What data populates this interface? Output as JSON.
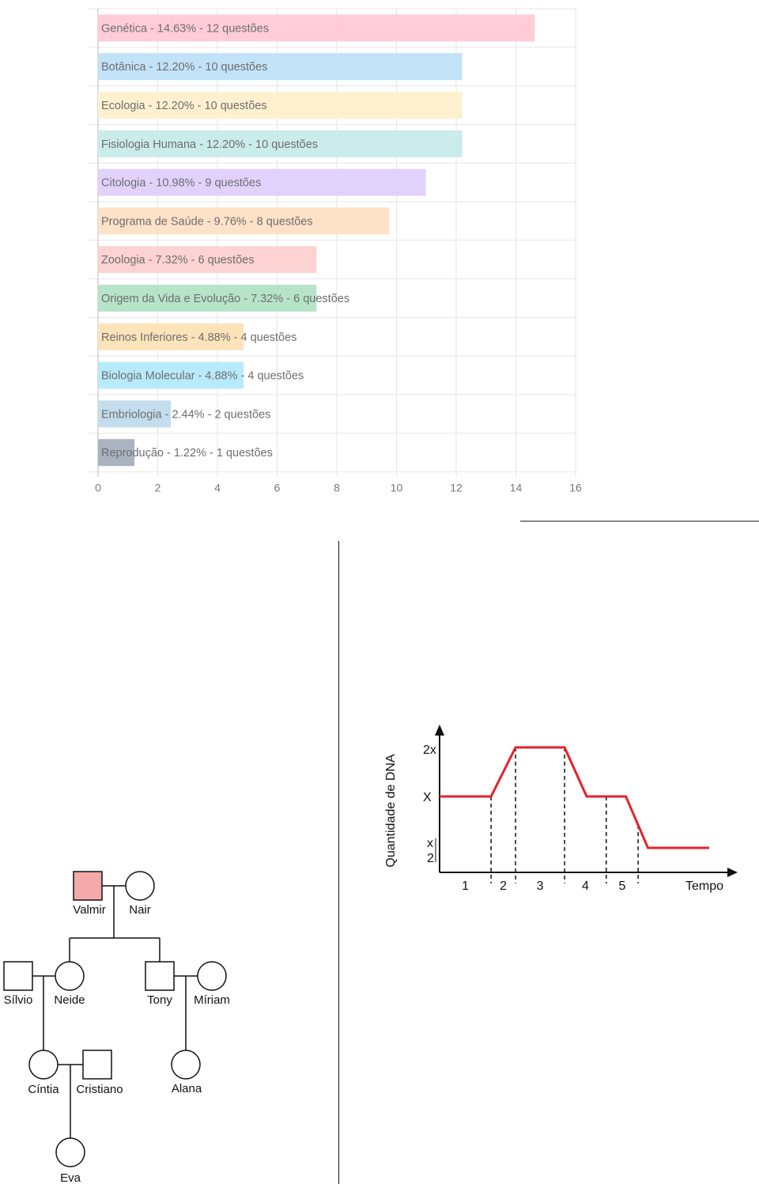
{
  "chart_data": [
    {
      "type": "bar",
      "orientation": "horizontal",
      "categories": [
        "Genética",
        "Botânica",
        "Ecologia",
        "Fisiologia Humana",
        "Citologia",
        "Programa de Saúde",
        "Zoologia",
        "Origem da Vida e Evolução",
        "Reinos Inferiores",
        "Biologia Molecular",
        "Embriologia",
        "Reprodução"
      ],
      "labels": [
        "Genética - 14.63% - 12 questões",
        "Botânica - 12.20% - 10 questões",
        "Ecologia - 12.20% - 10 questões",
        "Fisiologia Humana - 12.20% - 10 questões",
        "Citologia - 10.98% - 9 questões",
        "Programa de Saúde - 9.76% - 8 questões",
        "Zoologia - 7.32% - 6 questões",
        "Origem da Vida e Evolução - 7.32% - 6 questões",
        "Reinos Inferiores - 4.88% - 4 questões",
        "Biologia Molecular - 4.88% - 4 questões",
        "Embriologia - 2.44% - 2 questões",
        "Reprodução - 1.22% - 1 questões"
      ],
      "values": [
        14.63,
        12.2,
        12.2,
        12.2,
        10.98,
        9.76,
        7.32,
        7.32,
        4.88,
        4.88,
        2.44,
        1.22
      ],
      "questions": [
        12,
        10,
        10,
        10,
        9,
        8,
        6,
        6,
        4,
        4,
        2,
        1
      ],
      "colors": [
        "#ffc9d6",
        "#bfe0f8",
        "#fff0cd",
        "#c7ebe9",
        "#dfd0fc",
        "#fde0c4",
        "#fdd0d0",
        "#b2e3c6",
        "#fde2b5",
        "#b3eafb",
        "#c0dbec",
        "#a5afbc"
      ],
      "text_colors": [
        "#9a7080",
        "#5f7f98",
        "#9a8a66",
        "#5f8a86",
        "#7a6a9a",
        "#9a7f66",
        "#9a6a6a",
        "#4f8a66",
        "#9a8050",
        "#4f8aa0",
        "#5f7f90",
        "#4f5560"
      ],
      "xlim": [
        0,
        16
      ],
      "xticks": [
        "0",
        "2",
        "4",
        "6",
        "8",
        "10",
        "12",
        "14",
        "16"
      ],
      "grid": true
    },
    {
      "type": "line",
      "ylabel": "Quantidade de DNA",
      "xlabel": "Tempo",
      "yticks": [
        "2x",
        "X",
        "x",
        "2"
      ],
      "x": [
        0,
        1.05,
        1.55,
        2.55,
        3.0,
        3.8,
        4.25,
        5.5
      ],
      "y": [
        1,
        1,
        2,
        2,
        1,
        1,
        0.5,
        0.5
      ],
      "dividers": [
        1.05,
        1.55,
        2.55,
        3.4,
        4.05
      ],
      "phases": [
        "1",
        "2",
        "3",
        "4",
        "5"
      ],
      "line_color": "#e8202a"
    }
  ],
  "pedigree": {
    "individuals": {
      "valmir": {
        "name": "Valmir",
        "sex": "male",
        "affected": true
      },
      "nair": {
        "name": "Nair",
        "sex": "female",
        "affected": false
      },
      "silvio": {
        "name": "Sílvio",
        "sex": "male",
        "affected": false
      },
      "neide": {
        "name": "Neide",
        "sex": "female",
        "affected": false
      },
      "tony": {
        "name": "Tony",
        "sex": "male",
        "affected": false
      },
      "miriam": {
        "name": "Míriam",
        "sex": "female",
        "affected": false
      },
      "cintia": {
        "name": "Cíntia",
        "sex": "female",
        "affected": false
      },
      "cristiano": {
        "name": "Cristiano",
        "sex": "male",
        "affected": false
      },
      "alana": {
        "name": "Alana",
        "sex": "female",
        "affected": false
      },
      "eva": {
        "name": "Eva",
        "sex": "female",
        "affected": false
      }
    },
    "affected_color": "#f4a9ab"
  }
}
